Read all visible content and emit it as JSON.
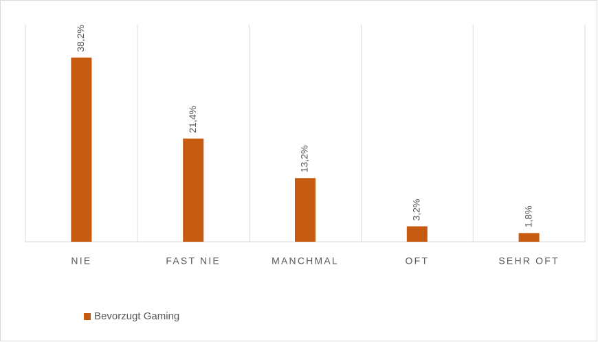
{
  "chart_data": {
    "type": "bar",
    "categories": [
      "NIE",
      "FAST NIE",
      "MANCHMAL",
      "OFT",
      "SEHR OFT"
    ],
    "series": [
      {
        "name": "Bevorzugt Gaming",
        "color": "#c55a11",
        "values": [
          38.2,
          21.4,
          13.2,
          3.2,
          1.8
        ],
        "value_labels": [
          "38,2%",
          "21,4%",
          "13,2%",
          "3,2%",
          "1,8%"
        ]
      }
    ],
    "ylim": [
      0,
      45
    ],
    "grid": true,
    "legend": "bottom-left"
  }
}
